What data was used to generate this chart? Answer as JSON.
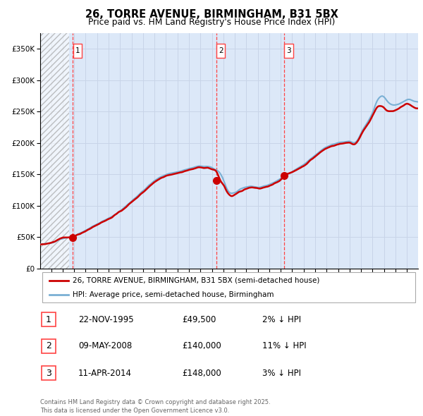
{
  "title_line1": "26, TORRE AVENUE, BIRMINGHAM, B31 5BX",
  "title_line2": "Price paid vs. HM Land Registry's House Price Index (HPI)",
  "legend_line1": "26, TORRE AVENUE, BIRMINGHAM, B31 5BX (semi-detached house)",
  "legend_line2": "HPI: Average price, semi-detached house, Birmingham",
  "sale1_date": "22-NOV-1995",
  "sale1_price": 49500,
  "sale1_pct": "2%",
  "sale2_date": "09-MAY-2008",
  "sale2_price": 140000,
  "sale2_pct": "11%",
  "sale3_date": "11-APR-2014",
  "sale3_price": 148000,
  "sale3_pct": "3%",
  "red_line_color": "#cc0000",
  "blue_line_color": "#7ab0d4",
  "grid_color": "#c8d4e8",
  "dashed_line_color": "#ff4444",
  "background_color": "#dce8f8",
  "footer_text": "Contains HM Land Registry data © Crown copyright and database right 2025.\nThis data is licensed under the Open Government Licence v3.0.",
  "ylim": [
    0,
    375000
  ],
  "yticks": [
    0,
    50000,
    100000,
    150000,
    200000,
    250000,
    300000,
    350000
  ]
}
